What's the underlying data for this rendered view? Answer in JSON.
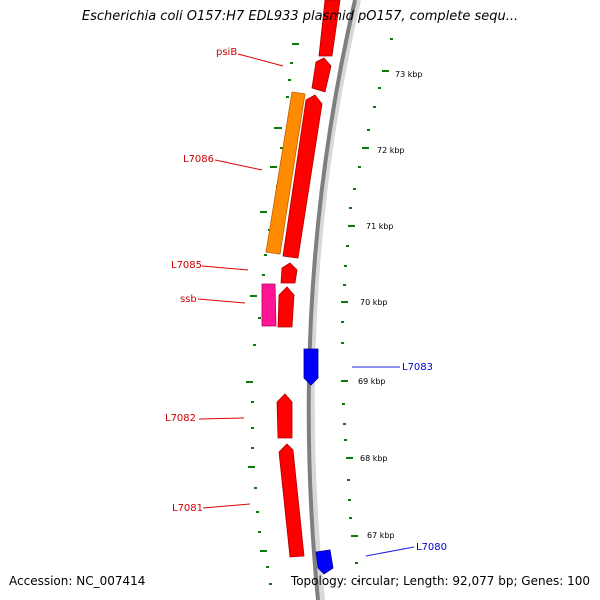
{
  "title": "Escherichia coli O157:H7 EDL933 plasmid pO157, complete sequ...",
  "footer": {
    "accession": "Accession: NC_007414",
    "summary": "Topology: circular; Length: 92,077 bp; Genes: 100"
  },
  "colors": {
    "gene_red": "#ff0000",
    "gene_orange": "#ff8c00",
    "gene_pink": "#ff1493",
    "gene_blue": "#0000ff",
    "tick_green": "#0a7a0a",
    "backbone_grey": "#808080",
    "label_red": "#cc0000",
    "label_blue": "#0000cc"
  },
  "scale_labels": [
    "73 kbp",
    "72 kbp",
    "71 kbp",
    "70 kbp",
    "69 kbp",
    "68 kbp",
    "67 kbp"
  ],
  "gene_labels": [
    {
      "id": "label-psib",
      "text": "psiB",
      "side": "left",
      "color": "red"
    },
    {
      "id": "label-l7086",
      "text": "L7086",
      "side": "left",
      "color": "red"
    },
    {
      "id": "label-l7085",
      "text": "L7085",
      "side": "left",
      "color": "red"
    },
    {
      "id": "label-ssb",
      "text": "ssb",
      "side": "left",
      "color": "red"
    },
    {
      "id": "label-l7083",
      "text": "L7083",
      "side": "right",
      "color": "blue"
    },
    {
      "id": "label-l7082",
      "text": "L7082",
      "side": "left",
      "color": "red"
    },
    {
      "id": "label-l7081",
      "text": "L7081",
      "side": "left",
      "color": "red"
    },
    {
      "id": "label-l7080",
      "text": "L7080",
      "side": "right",
      "color": "blue"
    }
  ]
}
